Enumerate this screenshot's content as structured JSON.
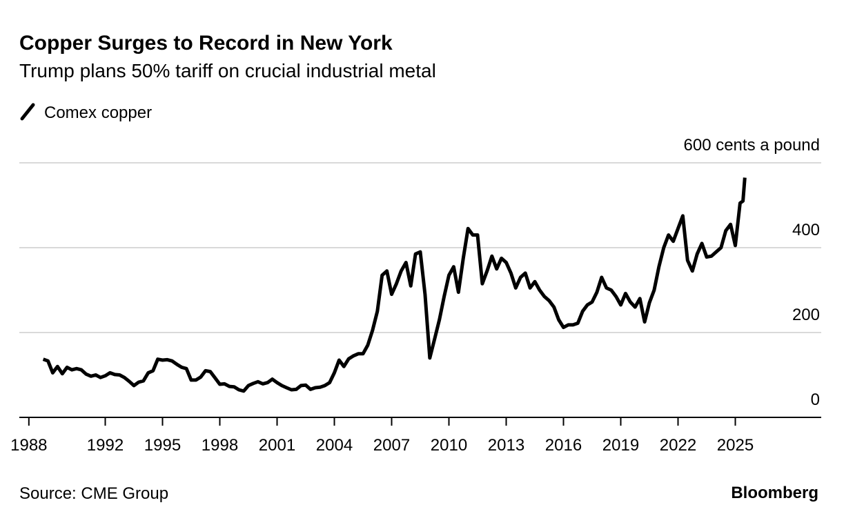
{
  "chart_data": {
    "type": "line",
    "title": "Copper Surges to Record in New York",
    "subtitle": "Trump plans 50% tariff on crucial industrial metal",
    "source": "Source: CME Group",
    "brand": "Bloomberg",
    "xlim": [
      1987.5,
      2029.5
    ],
    "xticks": [
      1988,
      1992,
      1995,
      1998,
      2001,
      2004,
      2007,
      2010,
      2013,
      2016,
      2019,
      2022,
      2025
    ],
    "ylim": [
      0,
      600
    ],
    "yticks": [
      0,
      200,
      400,
      {
        "value": 600,
        "label": "600 cents a pound"
      }
    ],
    "grid": true,
    "x": [
      1988.75,
      1989,
      1989.25,
      1989.5,
      1989.75,
      1990,
      1990.25,
      1990.5,
      1990.75,
      1991,
      1991.25,
      1991.5,
      1991.75,
      1992,
      1992.25,
      1992.5,
      1992.75,
      1993,
      1993.25,
      1993.5,
      1993.75,
      1994,
      1994.25,
      1994.5,
      1994.75,
      1995,
      1995.25,
      1995.5,
      1995.75,
      1996,
      1996.25,
      1996.5,
      1996.75,
      1997,
      1997.25,
      1997.5,
      1997.75,
      1998,
      1998.25,
      1998.5,
      1998.75,
      1999,
      1999.25,
      1999.5,
      1999.75,
      2000,
      2000.25,
      2000.5,
      2000.75,
      2001,
      2001.25,
      2001.5,
      2001.75,
      2002,
      2002.25,
      2002.5,
      2002.75,
      2003,
      2003.25,
      2003.5,
      2003.75,
      2004,
      2004.25,
      2004.5,
      2004.75,
      2005,
      2005.25,
      2005.5,
      2005.75,
      2006,
      2006.25,
      2006.5,
      2006.75,
      2007,
      2007.25,
      2007.5,
      2007.75,
      2008,
      2008.25,
      2008.5,
      2008.75,
      2009,
      2009.25,
      2009.5,
      2009.75,
      2010,
      2010.25,
      2010.5,
      2010.75,
      2011,
      2011.25,
      2011.5,
      2011.75,
      2012,
      2012.25,
      2012.5,
      2012.75,
      2013,
      2013.25,
      2013.5,
      2013.75,
      2014,
      2014.25,
      2014.5,
      2014.75,
      2015,
      2015.25,
      2015.5,
      2015.75,
      2016,
      2016.25,
      2016.5,
      2016.75,
      2017,
      2017.25,
      2017.5,
      2017.75,
      2018,
      2018.25,
      2018.5,
      2018.75,
      2019,
      2019.25,
      2019.5,
      2019.75,
      2020,
      2020.25,
      2020.5,
      2020.75,
      2021,
      2021.25,
      2021.5,
      2021.75,
      2022,
      2022.25,
      2022.5,
      2022.75,
      2023,
      2023.25,
      2023.5,
      2023.75,
      2024,
      2024.25,
      2024.5,
      2024.75,
      2025,
      2025.25,
      2025.4,
      2025.5
    ],
    "series": [
      {
        "name": "Comex copper",
        "color": "#000000",
        "values": [
          137,
          133,
          105,
          120,
          103,
          118,
          112,
          115,
          112,
          102,
          97,
          100,
          94,
          98,
          105,
          101,
          100,
          94,
          85,
          75,
          83,
          86,
          105,
          110,
          137,
          135,
          136,
          133,
          125,
          118,
          115,
          88,
          88,
          95,
          110,
          108,
          93,
          78,
          79,
          73,
          72,
          65,
          62,
          75,
          80,
          84,
          79,
          82,
          90,
          82,
          75,
          70,
          65,
          66,
          75,
          76,
          66,
          70,
          71,
          75,
          82,
          105,
          135,
          120,
          138,
          145,
          150,
          150,
          170,
          205,
          250,
          335,
          345,
          290,
          315,
          345,
          365,
          310,
          385,
          390,
          290,
          140,
          185,
          230,
          285,
          335,
          355,
          295,
          375,
          445,
          430,
          430,
          315,
          345,
          380,
          350,
          375,
          365,
          340,
          305,
          330,
          340,
          305,
          320,
          300,
          285,
          275,
          260,
          230,
          212,
          218,
          218,
          222,
          250,
          265,
          272,
          295,
          330,
          305,
          300,
          285,
          265,
          292,
          272,
          260,
          280,
          225,
          270,
          300,
          355,
          400,
          430,
          415,
          445,
          475,
          370,
          345,
          385,
          410,
          378,
          380,
          390,
          400,
          440,
          455,
          405,
          505,
          510,
          565
        ]
      }
    ]
  }
}
